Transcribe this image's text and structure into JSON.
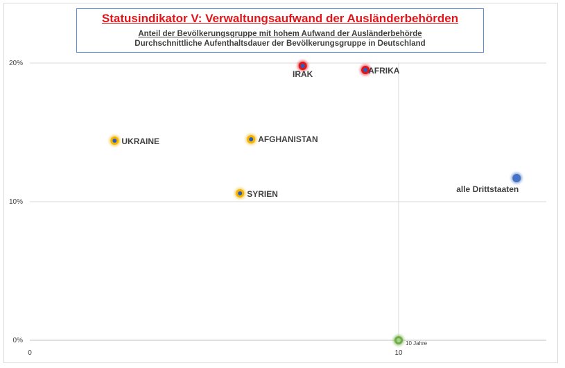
{
  "header": {
    "title": "Statusindikator V: Verwaltungsaufwand der Ausländerbehörden",
    "subtitle_1": "Anteil der Bevölkerungsgruppe mit hohem Aufwand der Ausländerbehörde",
    "subtitle_2": "Durchschnittliche Aufenthaltsdauer der Bevölkerungsgruppe in Deutschland"
  },
  "chart_data": {
    "type": "scatter",
    "title": "Statusindikator V: Verwaltungsaufwand der Ausländerbehörden",
    "xlim": [
      0,
      14
    ],
    "ylim": [
      0,
      20
    ],
    "x_ticks": [
      "0",
      "10"
    ],
    "y_ticks": [
      "0%",
      "10%",
      "20%"
    ],
    "grid": true,
    "reference_lines": {
      "x": 10,
      "y": 10
    },
    "points": [
      {
        "label": "UKRAINE",
        "x": 2.3,
        "y": 14.4,
        "color": "#f4b400",
        "core": "#2e5cb8"
      },
      {
        "label": "AFGHANISTAN",
        "x": 6.0,
        "y": 14.5,
        "color": "#f4b400",
        "core": "#2e5cb8"
      },
      {
        "label": "SYRIEN",
        "x": 5.7,
        "y": 10.6,
        "color": "#f4b400",
        "core": "#2e5cb8"
      },
      {
        "label": "IRAK",
        "x": 7.4,
        "y": 19.8,
        "color": "#e0161b",
        "core": "#2e5cb8"
      },
      {
        "label": "AFRIKA",
        "x": 9.1,
        "y": 19.5,
        "color": "#e0161b",
        "core": "#2e5cb8"
      },
      {
        "label": "alle Drittstaaten",
        "x": 13.2,
        "y": 11.7,
        "color": "#4472c4",
        "core": "#4472c4"
      },
      {
        "label": "10 Jahre",
        "x": 10.0,
        "y": 0.0,
        "color": "#70ad47",
        "core": "#a9d18e"
      }
    ]
  }
}
